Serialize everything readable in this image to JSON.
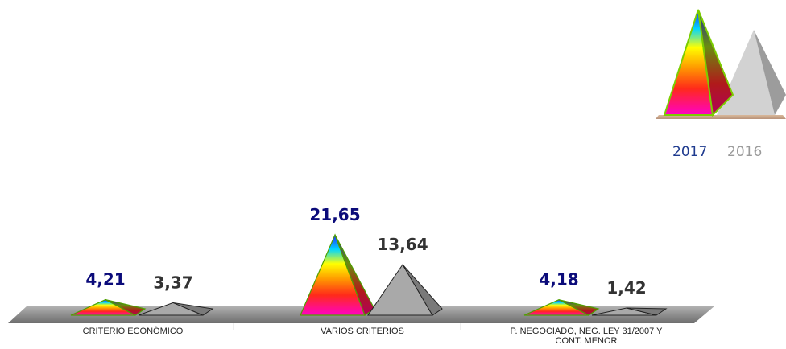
{
  "chart_data": {
    "type": "bar",
    "categories": [
      [
        "CRITERIO ECONÓMICO"
      ],
      [
        "VARIOS CRITERIOS"
      ],
      [
        "P. NEGOCIADO, NEG. LEY 31/2007 Y",
        "CONT. MENOR"
      ]
    ],
    "series": [
      {
        "name": "2017",
        "values": [
          4.21,
          21.65,
          4.18
        ],
        "labels": [
          "4,21",
          "21,65",
          "4,18"
        ],
        "color": "#0b0b7a"
      },
      {
        "name": "2016",
        "values": [
          3.37,
          13.64,
          1.42
        ],
        "labels": [
          "3,37",
          "13,64",
          "1,42"
        ],
        "color": "#333333"
      }
    ],
    "legend_position": "top-right",
    "grid": false
  },
  "colors": {
    "label_2017": "#0b0b7a",
    "label_2016": "#333333",
    "legend_2017": "#1f3b8f",
    "legend_2016": "#9a9a9a",
    "pyramid_2016": "#a9a9a9",
    "legend_base": "#c9a88b",
    "floor": "#9a9a9a"
  }
}
